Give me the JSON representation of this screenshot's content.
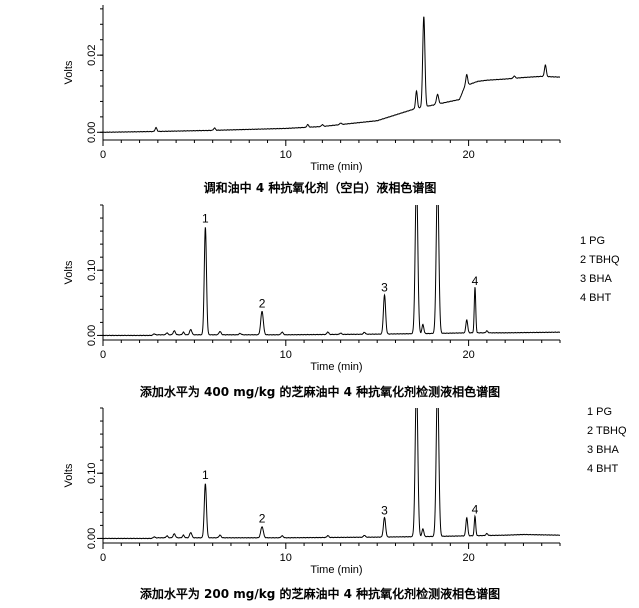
{
  "chart_data": [
    {
      "type": "line",
      "title": "调和油中 4 种抗氧化剂（空白）液相色谱图",
      "xlabel": "Time (min)",
      "ylabel": "Volts",
      "xlim": [
        0,
        25
      ],
      "ylim": [
        -0.002,
        0.033
      ],
      "x_ticks": [
        0,
        10,
        20
      ],
      "x_tick_labels": [
        "0",
        "10",
        "20"
      ],
      "y_ticks": [
        0.0,
        0.02
      ],
      "y_tick_labels": [
        "0.00",
        "0.02"
      ],
      "baseline": [
        [
          0,
          0.0
        ],
        [
          2.8,
          0.0002
        ],
        [
          6,
          0.0005
        ],
        [
          10,
          0.001
        ],
        [
          12,
          0.0015
        ],
        [
          14,
          0.0025
        ],
        [
          15,
          0.003
        ],
        [
          16,
          0.0045
        ],
        [
          17,
          0.006
        ],
        [
          18,
          0.007
        ],
        [
          19,
          0.008
        ],
        [
          19.5,
          0.0085
        ],
        [
          19.8,
          0.012
        ],
        [
          20.5,
          0.0132
        ],
        [
          21,
          0.0135
        ],
        [
          22,
          0.0138
        ],
        [
          23,
          0.0142
        ],
        [
          24,
          0.0145
        ],
        [
          25,
          0.0143
        ]
      ],
      "peaks": [
        {
          "x": 2.9,
          "h": 0.001,
          "w": 0.05
        },
        {
          "x": 6.1,
          "h": 0.0006,
          "w": 0.05
        },
        {
          "x": 11.2,
          "h": 0.0007,
          "w": 0.05
        },
        {
          "x": 12.0,
          "h": 0.0005,
          "w": 0.05
        },
        {
          "x": 13.0,
          "h": 0.0004,
          "w": 0.05
        },
        {
          "x": 17.15,
          "h": 0.0045,
          "w": 0.05
        },
        {
          "x": 17.55,
          "h": 0.0235,
          "w": 0.06
        },
        {
          "x": 18.3,
          "h": 0.0025,
          "w": 0.06
        },
        {
          "x": 19.9,
          "h": 0.0028,
          "w": 0.05
        },
        {
          "x": 22.5,
          "h": 0.0006,
          "w": 0.05
        },
        {
          "x": 24.2,
          "h": 0.003,
          "w": 0.05
        }
      ],
      "peak_labels": [],
      "legend": []
    },
    {
      "type": "line",
      "title": "添加水平为 400 mg/kg 的芝麻油中 4 种抗氧化剂检测液相色谱图",
      "xlabel": "Time (min)",
      "ylabel": "Volts",
      "xlim": [
        0,
        25
      ],
      "ylim": [
        -0.007,
        0.2
      ],
      "x_ticks": [
        0,
        10,
        20
      ],
      "x_tick_labels": [
        "0",
        "10",
        "20"
      ],
      "y_ticks": [
        0.0,
        0.1
      ],
      "y_tick_labels": [
        "0.00",
        "0.10"
      ],
      "baseline": [
        [
          0,
          0.0
        ],
        [
          2.6,
          0.0
        ],
        [
          3,
          0.001
        ],
        [
          10,
          0.001
        ],
        [
          15,
          0.002
        ],
        [
          18,
          0.003
        ],
        [
          20,
          0.004
        ],
        [
          22,
          0.004
        ],
        [
          25,
          0.005
        ]
      ],
      "peaks": [
        {
          "x": 2.8,
          "h": 0.002,
          "w": 0.05
        },
        {
          "x": 3.5,
          "h": 0.003,
          "w": 0.05
        },
        {
          "x": 3.9,
          "h": 0.006,
          "w": 0.06
        },
        {
          "x": 4.4,
          "h": 0.004,
          "w": 0.05
        },
        {
          "x": 4.8,
          "h": 0.008,
          "w": 0.06
        },
        {
          "x": 5.6,
          "h": 0.165,
          "w": 0.06
        },
        {
          "x": 6.4,
          "h": 0.005,
          "w": 0.06
        },
        {
          "x": 7.5,
          "h": 0.002,
          "w": 0.06
        },
        {
          "x": 8.7,
          "h": 0.036,
          "w": 0.07
        },
        {
          "x": 9.8,
          "h": 0.004,
          "w": 0.06
        },
        {
          "x": 12.3,
          "h": 0.004,
          "w": 0.05
        },
        {
          "x": 13.0,
          "h": 0.002,
          "w": 0.05
        },
        {
          "x": 14.3,
          "h": 0.003,
          "w": 0.05
        },
        {
          "x": 15.4,
          "h": 0.06,
          "w": 0.06
        },
        {
          "x": 17.15,
          "h": 0.24,
          "w": 0.07
        },
        {
          "x": 17.5,
          "h": 0.014,
          "w": 0.05
        },
        {
          "x": 18.3,
          "h": 0.24,
          "w": 0.07
        },
        {
          "x": 19.9,
          "h": 0.02,
          "w": 0.05
        },
        {
          "x": 20.35,
          "h": 0.07,
          "w": 0.04
        },
        {
          "x": 21.0,
          "h": 0.003,
          "w": 0.05
        }
      ],
      "peak_labels": [
        {
          "label": "1",
          "x": 5.6,
          "y": 0.17
        },
        {
          "label": "2",
          "x": 8.7,
          "y": 0.04
        },
        {
          "label": "3",
          "x": 15.4,
          "y": 0.064
        },
        {
          "label": "4",
          "x": 20.35,
          "y": 0.074
        }
      ],
      "legend": [
        "1 PG",
        "2 TBHQ",
        "3 BHA",
        "4 BHT"
      ]
    },
    {
      "type": "line",
      "title": "添加水平为 200 mg/kg 的芝麻油中 4 种抗氧化剂检测液相色谱图",
      "xlabel": "Time (min)",
      "ylabel": "Volts",
      "xlim": [
        0,
        25
      ],
      "ylim": [
        -0.007,
        0.2
      ],
      "x_ticks": [
        0,
        10,
        20
      ],
      "x_tick_labels": [
        "0",
        "10",
        "20"
      ],
      "y_ticks": [
        0.0,
        0.1
      ],
      "y_tick_labels": [
        "0.00",
        "0.10"
      ],
      "baseline": [
        [
          0,
          0.0
        ],
        [
          2.6,
          0.0
        ],
        [
          3,
          0.001
        ],
        [
          10,
          0.001
        ],
        [
          15,
          0.002
        ],
        [
          18,
          0.003
        ],
        [
          20,
          0.004
        ],
        [
          22,
          0.005
        ],
        [
          23,
          0.006
        ],
        [
          25,
          0.005
        ]
      ],
      "peaks": [
        {
          "x": 2.8,
          "h": 0.002,
          "w": 0.05
        },
        {
          "x": 3.5,
          "h": 0.003,
          "w": 0.05
        },
        {
          "x": 3.9,
          "h": 0.006,
          "w": 0.06
        },
        {
          "x": 4.4,
          "h": 0.004,
          "w": 0.05
        },
        {
          "x": 4.8,
          "h": 0.008,
          "w": 0.06
        },
        {
          "x": 5.6,
          "h": 0.083,
          "w": 0.06
        },
        {
          "x": 6.4,
          "h": 0.004,
          "w": 0.06
        },
        {
          "x": 8.7,
          "h": 0.017,
          "w": 0.07
        },
        {
          "x": 9.8,
          "h": 0.003,
          "w": 0.06
        },
        {
          "x": 12.3,
          "h": 0.003,
          "w": 0.05
        },
        {
          "x": 14.3,
          "h": 0.003,
          "w": 0.05
        },
        {
          "x": 15.4,
          "h": 0.03,
          "w": 0.06
        },
        {
          "x": 17.15,
          "h": 0.24,
          "w": 0.07
        },
        {
          "x": 17.5,
          "h": 0.012,
          "w": 0.05
        },
        {
          "x": 18.3,
          "h": 0.24,
          "w": 0.07
        },
        {
          "x": 19.9,
          "h": 0.028,
          "w": 0.05
        },
        {
          "x": 20.35,
          "h": 0.03,
          "w": 0.04
        },
        {
          "x": 21.0,
          "h": 0.003,
          "w": 0.05
        }
      ],
      "peak_labels": [
        {
          "label": "1",
          "x": 5.6,
          "y": 0.088
        },
        {
          "label": "2",
          "x": 8.7,
          "y": 0.021
        },
        {
          "label": "3",
          "x": 15.4,
          "y": 0.034
        },
        {
          "label": "4",
          "x": 20.35,
          "y": 0.035
        }
      ],
      "legend": [
        "1 PG",
        "2 TBHQ",
        "3 BHA",
        "4 BHT"
      ]
    }
  ]
}
